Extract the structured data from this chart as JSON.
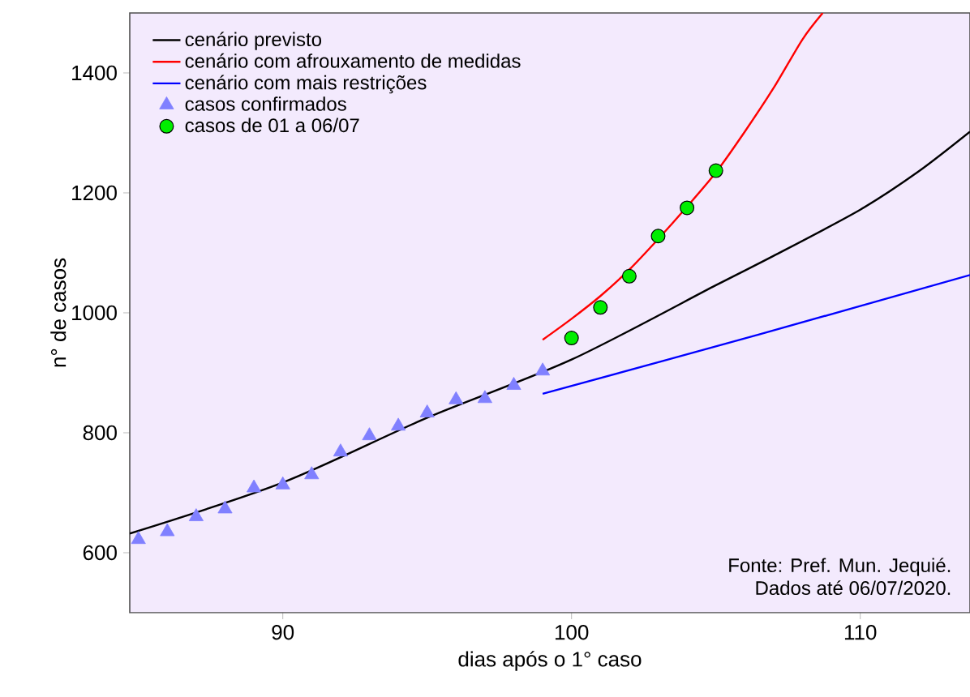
{
  "chart_data": {
    "type": "line",
    "xlabel": "dias após o 1° caso",
    "ylabel": "n° de casos",
    "xlim": [
      84.7,
      113.8
    ],
    "ylim": [
      500,
      1500
    ],
    "xticks": [
      90,
      100,
      110
    ],
    "yticks": [
      600,
      800,
      1000,
      1200,
      1400
    ],
    "legend": "top left",
    "annotations": [
      "Fonte: Pref. Mun. Jequié.",
      "Dados até 06/07/2020."
    ],
    "series": [
      {
        "name": "cenário previsto",
        "color": "#000000",
        "x": [
          84.7,
          90,
          95,
          100,
          105,
          107,
          110,
          112,
          113.8
        ],
        "values": [
          632,
          717,
          825,
          922,
          1046,
          1095,
          1172,
          1235,
          1302
        ]
      },
      {
        "name": "cenário com afrouxamento de medidas",
        "color": "#ff0000",
        "x": [
          99,
          100,
          101,
          102,
          103,
          104,
          105,
          106,
          107,
          108,
          108.7
        ],
        "values": [
          955,
          990,
          1028,
          1072,
          1123,
          1177,
          1234,
          1302,
          1375,
          1456,
          1500
        ]
      },
      {
        "name": "cenário com mais restrições",
        "color": "#0000ff",
        "x": [
          99,
          106.5,
          113.8
        ],
        "values": [
          865,
          964,
          1063
        ]
      },
      {
        "name": "casos confirmados",
        "type": "scatter",
        "marker": "triangle",
        "color": "#8080ff",
        "x": [
          85,
          86,
          87,
          88,
          89,
          90,
          91,
          92,
          93,
          94,
          95,
          96,
          97,
          98,
          99
        ],
        "values": [
          622,
          635,
          660,
          673,
          708,
          713,
          730,
          768,
          795,
          811,
          833,
          855,
          857,
          879,
          903
        ]
      },
      {
        "name": "casos de 01 a 06/07",
        "type": "scatter",
        "marker": "circle",
        "color": "#00ee00",
        "x": [
          100,
          101,
          102,
          103,
          104,
          105
        ],
        "values": [
          958,
          1009,
          1061,
          1128,
          1175,
          1237
        ]
      }
    ]
  }
}
